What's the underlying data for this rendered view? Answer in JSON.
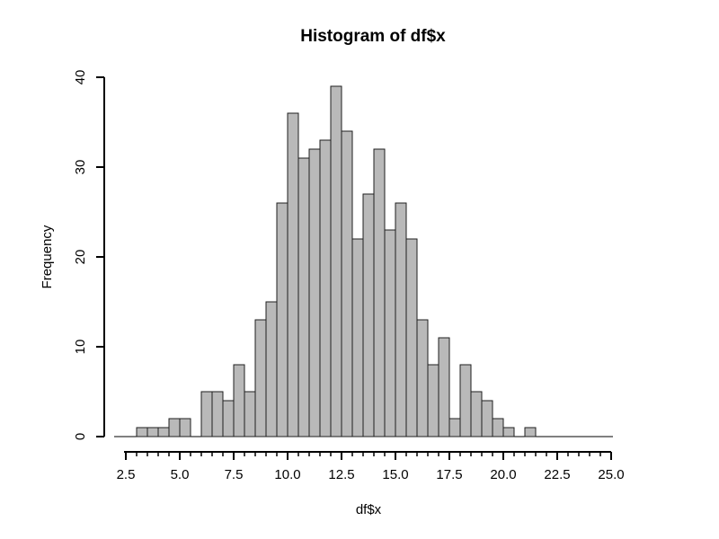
{
  "chart_data": {
    "type": "bar",
    "subtype": "histogram",
    "title": "Histogram of df$x",
    "xlabel": "df$x",
    "ylabel": "Frequency",
    "bin_start": 3.0,
    "bin_width": 0.5,
    "counts": [
      1,
      1,
      1,
      2,
      2,
      0,
      5,
      5,
      4,
      8,
      5,
      13,
      15,
      26,
      36,
      31,
      32,
      33,
      39,
      34,
      22,
      27,
      32,
      23,
      26,
      22,
      13,
      8,
      11,
      2,
      8,
      5,
      4,
      2,
      1,
      0,
      1
    ],
    "total_n": 500,
    "xlim": [
      2.5,
      25.0
    ],
    "ylim": [
      0,
      40
    ],
    "x_major_ticks": [
      2.5,
      5.0,
      7.5,
      10.0,
      12.5,
      15.0,
      17.5,
      20.0,
      22.5,
      25.0
    ],
    "x_major_tick_labels": [
      "2.5",
      "5.0",
      "7.5",
      "10.0",
      "12.5",
      "15.0",
      "17.5",
      "20.0",
      "22.5",
      "25.0"
    ],
    "x_minor_tick_step": 0.5,
    "y_ticks": [
      0,
      10,
      20,
      30,
      40
    ],
    "y_tick_labels": [
      "0",
      "10",
      "20",
      "30",
      "40"
    ],
    "grid": false,
    "legend": null,
    "bar_fill": "#b9b9b9",
    "bar_stroke": "#1f1f1f",
    "axis_color": "#000000",
    "background": "#ffffff"
  }
}
